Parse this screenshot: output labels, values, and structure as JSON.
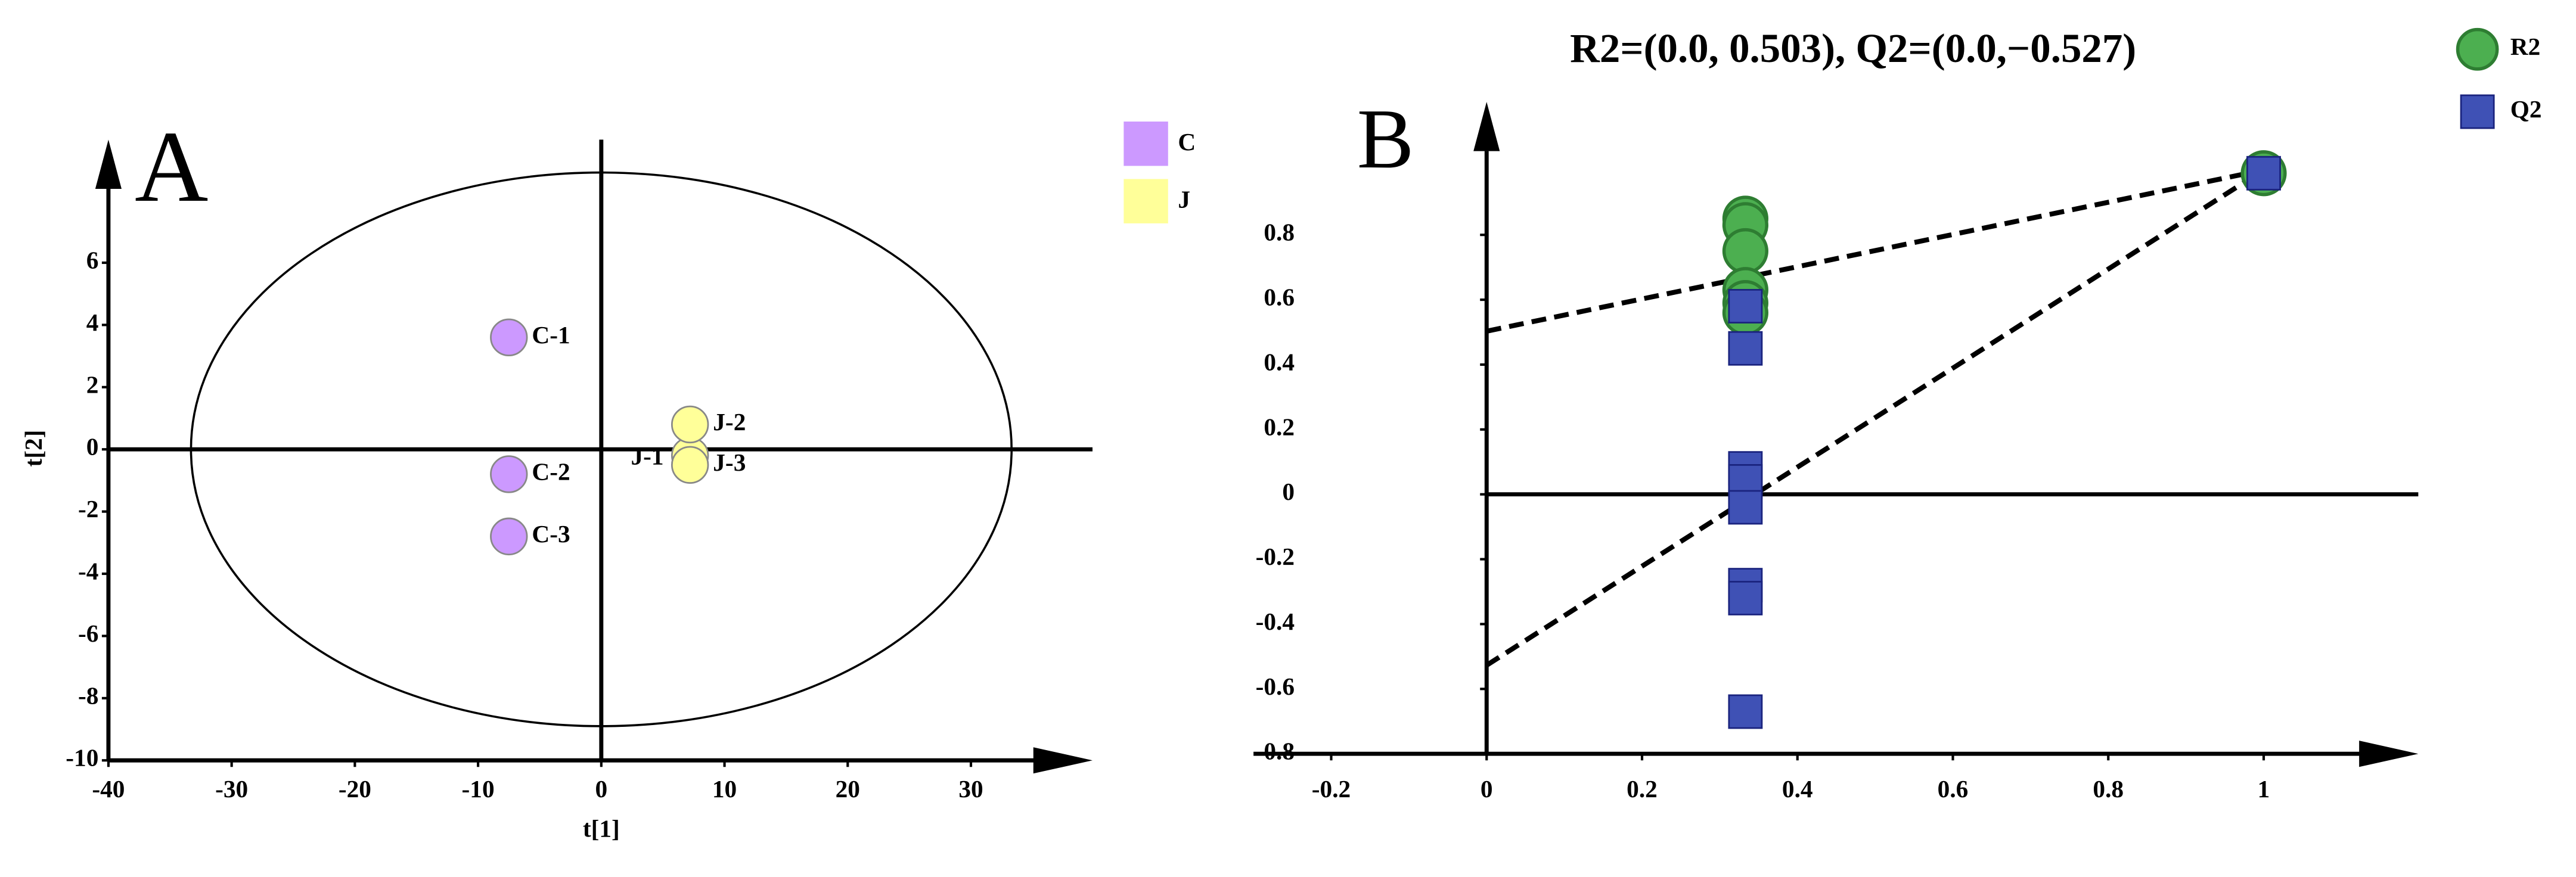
{
  "chart_data": [
    {
      "type": "scatter",
      "panel_label": "A",
      "x_label": "t[1]",
      "y_label": "t[2]",
      "xlim": [
        -40,
        39
      ],
      "ylim": [
        -10,
        9.8
      ],
      "xticks": [
        -40,
        -30,
        -20,
        -10,
        0,
        10,
        20,
        30
      ],
      "yticks": [
        -10,
        -8,
        -6,
        -4,
        -2,
        0,
        2,
        4,
        6
      ],
      "ellipse_radii": [
        33.3,
        8.9
      ],
      "series": [
        {
          "name": "C",
          "color": "#cc99ff",
          "x": [
            -7.5,
            -7.5,
            -7.5
          ],
          "values": [
            3.6,
            -0.8,
            -2.8
          ],
          "point_labels": [
            "C-1",
            "C-2",
            "C-3"
          ]
        },
        {
          "name": "J",
          "color": "#ffff99",
          "x": [
            7.2,
            7.2,
            7.2
          ],
          "values": [
            -0.2,
            0.8,
            -0.5
          ],
          "point_labels": [
            "J-1",
            "J-2",
            "J-3"
          ]
        }
      ]
    },
    {
      "type": "scatter",
      "panel_label": "B",
      "title": "R2=(0.0, 0.503), Q2=(0.0,−0.527)",
      "xlim": [
        -0.3,
        1.2
      ],
      "ylim": [
        -0.8,
        1.2
      ],
      "xticks": [
        -0.2,
        0,
        0.2,
        0.4,
        0.6,
        0.8,
        1
      ],
      "yticks": [
        -0.8,
        -0.6,
        -0.4,
        -0.2,
        0,
        0.2,
        0.4,
        0.6,
        0.8
      ],
      "lines": [
        {
          "x": [
            0,
            1
          ],
          "values": [
            0.503,
            1.0
          ]
        },
        {
          "x": [
            0,
            1
          ],
          "values": [
            -0.527,
            1.0
          ]
        }
      ],
      "series": [
        {
          "name": "R2",
          "color": "#4caf50",
          "marker": "circle",
          "x": [
            0.333,
            0.333,
            0.333,
            0.333,
            0.333,
            0.333,
            1
          ],
          "values": [
            0.85,
            0.83,
            0.75,
            0.63,
            0.59,
            0.56,
            0.99
          ]
        },
        {
          "name": "Q2",
          "color": "#3f51b5",
          "marker": "square",
          "x": [
            0.333,
            0.333,
            0.333,
            0.333,
            0.333,
            0.333,
            0.333,
            0.333,
            1
          ],
          "values": [
            0.58,
            0.45,
            0.08,
            0.04,
            -0.04,
            -0.28,
            -0.32,
            -0.67,
            0.99
          ]
        }
      ]
    }
  ]
}
